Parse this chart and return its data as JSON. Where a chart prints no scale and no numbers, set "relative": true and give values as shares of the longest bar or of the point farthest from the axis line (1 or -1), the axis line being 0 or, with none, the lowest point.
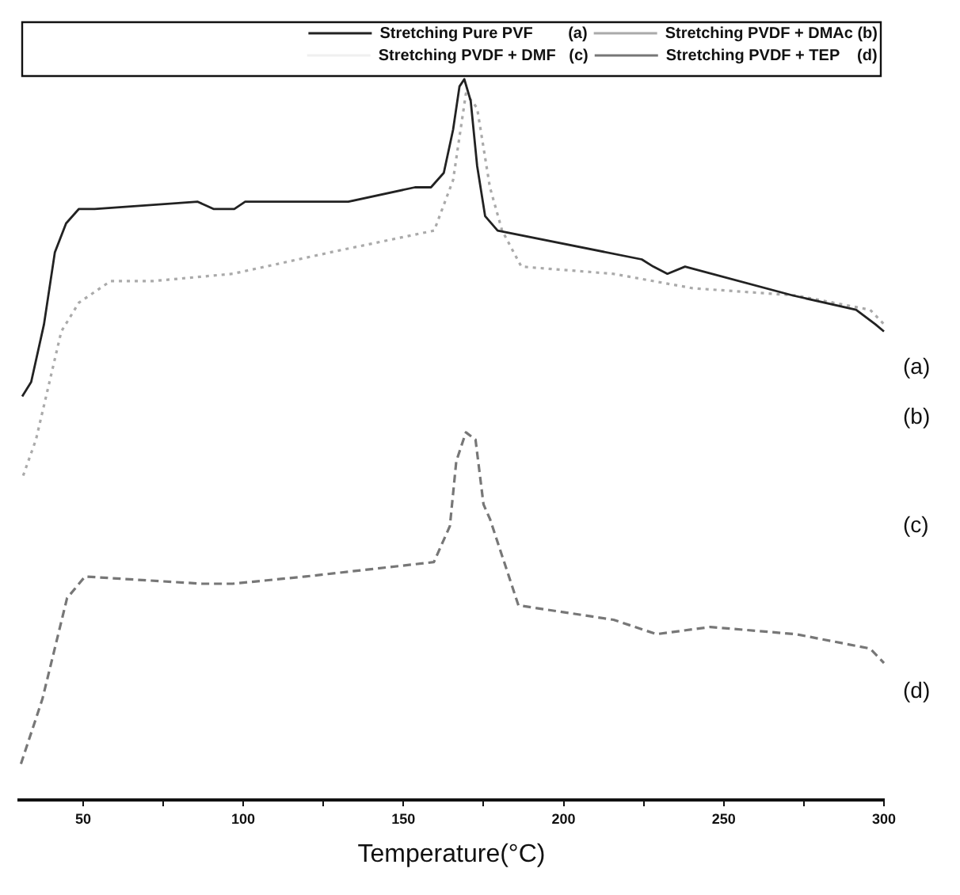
{
  "chart_data": {
    "type": "line",
    "xlabel": "Temperature(°C)",
    "relative": true,
    "xlim": [
      30,
      300
    ],
    "xticks": [
      50,
      {
        "value": 75,
        "label": null
      },
      100,
      {
        "value": 125,
        "label": null
      },
      150,
      {
        "value": 175,
        "label": null
      },
      200,
      {
        "value": 225,
        "label": null
      },
      250,
      {
        "value": 275,
        "label": null
      },
      300
    ],
    "grid": false,
    "legend": "top right",
    "marker": "none",
    "series": [
      {
        "name": "Stretching Pure PVF        (a)",
        "color": "#222222",
        "line_style": "solid",
        "x": [
          31,
          33.8,
          37.8,
          41.2,
          44.7,
          48.7,
          53.6,
          85.8,
          90.7,
          94.2,
          97.2,
          100.6,
          132.8,
          153.6,
          158.6,
          162.6,
          165.5,
          167.5,
          169,
          171,
          173,
          175.5,
          179.4,
          224.4,
          228,
          232.4,
          237.9,
          271.5,
          291.3,
          297.3,
          300
        ],
        "values": [
          0.56,
          0.58,
          0.66,
          0.76,
          0.8,
          0.82,
          0.82,
          0.83,
          0.82,
          0.82,
          0.82,
          0.83,
          0.83,
          0.85,
          0.85,
          0.87,
          0.93,
          0.99,
          1,
          0.97,
          0.88,
          0.81,
          0.79,
          0.75,
          0.74,
          0.73,
          0.74,
          0.7,
          0.68,
          0.66,
          0.65
        ]
      },
      {
        "name": "Stretching PVDF + DMAc (b)",
        "color": "#aaaaaa",
        "line_style": "dotted",
        "x": [
          31.3,
          35.3,
          43.2,
          48.7,
          58.6,
          71.9,
          96.7,
          127.4,
          159.6,
          165.5,
          169.5,
          173,
          177,
          180.8,
          186.8,
          215.5,
          240.3,
          272.5,
          295.7,
          300
        ],
        "values": [
          0.45,
          0.5,
          0.65,
          0.69,
          0.72,
          0.72,
          0.73,
          0.76,
          0.79,
          0.86,
          0.98,
          0.96,
          0.85,
          0.79,
          0.74,
          0.73,
          0.71,
          0.7,
          0.68,
          0.66
        ]
      },
      {
        "name": "Stretching PVDF + DMF   (c)",
        "color": "#f0f0f0",
        "line_style": "solid"
      },
      {
        "name": "Stretching PVDF + TEP    (d)",
        "color": "#777777",
        "line_style": "dashed",
        "x": [
          30.6,
          37.3,
          45,
          50.6,
          87.1,
          96.7,
          119.4,
          159.5,
          164.5,
          166.5,
          169.5,
          172.5,
          175,
          177,
          185.9,
          215.6,
          229,
          245.8,
          272.5,
          295.7,
          300
        ],
        "values": [
          0.05,
          0.14,
          0.28,
          0.31,
          0.3,
          0.3,
          0.31,
          0.33,
          0.38,
          0.47,
          0.51,
          0.5,
          0.41,
          0.39,
          0.27,
          0.25,
          0.23,
          0.24,
          0.23,
          0.21,
          0.19
        ]
      }
    ],
    "annotations": [
      "(a)",
      "(b)",
      "(c)",
      "(d)"
    ]
  }
}
